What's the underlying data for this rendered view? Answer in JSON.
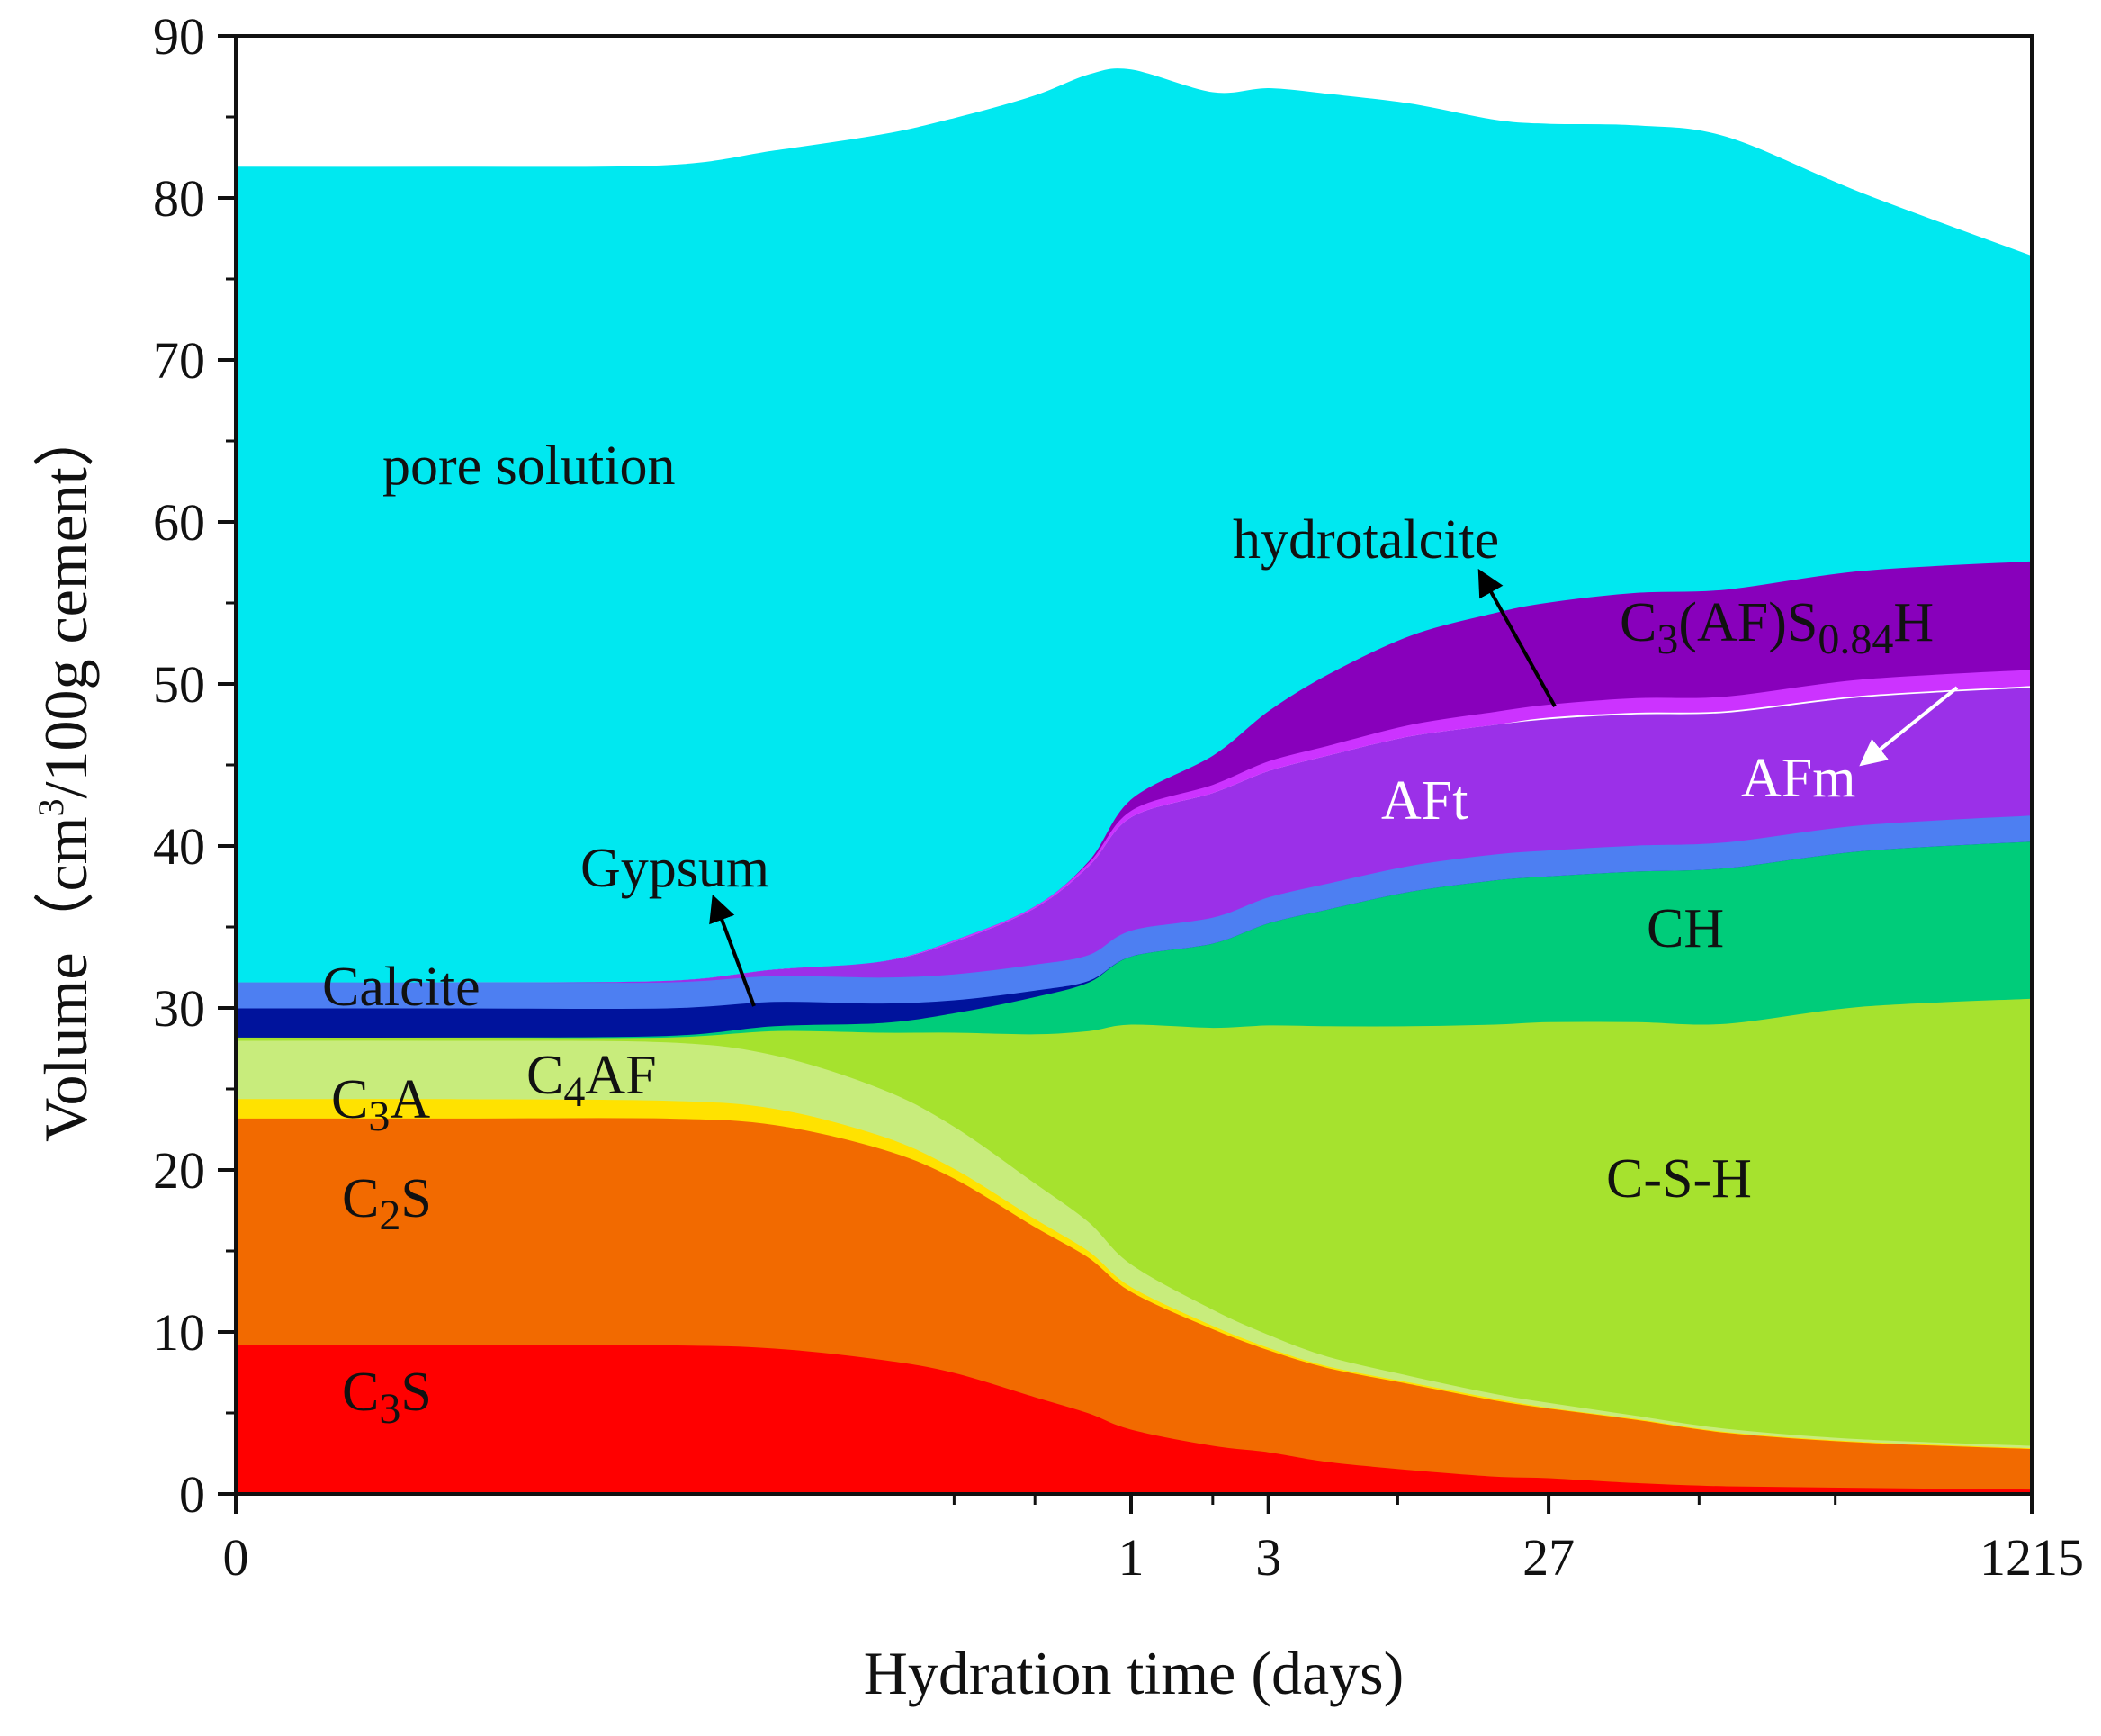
{
  "chart_data": {
    "type": "area",
    "stacked": true,
    "xlabel": "Hydration time (days)",
    "ylabel": {
      "prefix": "Volume（cm",
      "sup": "3",
      "suffix": "/100g cement）"
    },
    "ylim": [
      0,
      90
    ],
    "yticks": [
      0,
      10,
      20,
      30,
      40,
      50,
      60,
      70,
      80,
      90
    ],
    "x_scale": "log",
    "xlim_days": [
      0,
      1215
    ],
    "xtick_labels": [
      {
        "value": 0,
        "label": "0"
      },
      {
        "value": 1,
        "label": "1"
      },
      {
        "value": 3,
        "label": "3"
      },
      {
        "value": 27,
        "label": "27"
      },
      {
        "value": 1215,
        "label": "1215"
      }
    ],
    "x_days": [
      0,
      0.01,
      0.05,
      0.1,
      0.2,
      0.3,
      0.5,
      0.7,
      1,
      2,
      3,
      5,
      10,
      20,
      27,
      50,
      100,
      300,
      1215
    ],
    "series": [
      {
        "name": "C3S",
        "color": "#ff0000",
        "values": [
          9.2,
          9.2,
          9.2,
          9.0,
          8.3,
          7.5,
          6.0,
          5.0,
          4.0,
          3.0,
          2.6,
          2.0,
          1.5,
          1.1,
          1.0,
          0.7,
          0.5,
          0.4,
          0.3
        ]
      },
      {
        "name": "C2S",
        "color": "#f26a00",
        "values": [
          14.0,
          14.0,
          14.0,
          13.8,
          13.0,
          12.0,
          10.5,
          9.6,
          8.5,
          7.2,
          6.3,
          5.8,
          5.3,
          4.7,
          4.3,
          3.9,
          3.3,
          2.8,
          2.5
        ]
      },
      {
        "name": "C3A",
        "color": "#ffe200",
        "values": [
          1.2,
          1.2,
          1.1,
          1.0,
          0.8,
          0.6,
          0.5,
          0.4,
          0.3,
          0.2,
          0.15,
          0.1,
          0.1,
          0.1,
          0.05,
          0.05,
          0.05,
          0.05,
          0.05
        ]
      },
      {
        "name": "C4AF",
        "color": "#c8ec7c",
        "values": [
          3.6,
          3.6,
          3.6,
          3.3,
          2.9,
          2.6,
          2.2,
          1.8,
          1.4,
          1.0,
          0.8,
          0.6,
          0.4,
          0.3,
          0.3,
          0.2,
          0.2,
          0.15,
          0.15
        ]
      },
      {
        "name": "C-S-H",
        "color": "#a6e22e",
        "values": [
          0.2,
          0.2,
          0.3,
          1.5,
          3.5,
          5.8,
          9.2,
          11.8,
          14.8,
          17.4,
          19.1,
          20.4,
          21.6,
          22.8,
          23.5,
          24.3,
          25.0,
          26.7,
          27.6
        ]
      },
      {
        "name": "CH",
        "color": "#00cc7a",
        "values": [
          0.0,
          0.0,
          0.1,
          0.3,
          0.6,
          1.2,
          2.3,
          3.0,
          4.2,
          5.2,
          6.3,
          7.2,
          8.3,
          8.9,
          9.0,
          9.3,
          9.6,
          9.6,
          9.7
        ]
      },
      {
        "name": "Gypsum",
        "color": "#00139c",
        "values": [
          1.8,
          1.8,
          1.7,
          1.5,
          1.2,
          0.8,
          0.4,
          0.1,
          0,
          0,
          0,
          0,
          0,
          0,
          0,
          0,
          0,
          0,
          0
        ]
      },
      {
        "name": "Calcite",
        "color": "#4d7ff2",
        "values": [
          1.6,
          1.6,
          1.6,
          1.6,
          1.6,
          1.6,
          1.6,
          1.6,
          1.6,
          1.6,
          1.6,
          1.6,
          1.6,
          1.6,
          1.6,
          1.6,
          1.6,
          1.6,
          1.6
        ]
      },
      {
        "name": "AFt",
        "color": "#9b30e8",
        "values": [
          0.0,
          0.0,
          0.1,
          0.4,
          1.0,
          2.0,
          3.5,
          5.5,
          7.0,
          7.7,
          7.8,
          7.9,
          8.0,
          8.0,
          8.1,
          8.1,
          8.0,
          7.9,
          7.9
        ]
      },
      {
        "name": "AFm",
        "color": "#ffffff",
        "values": [
          0,
          0,
          0,
          0,
          0,
          0,
          0,
          0,
          0,
          0,
          0,
          0,
          0,
          0,
          0.1,
          0.1,
          0.1,
          0.1,
          0.1
        ]
      },
      {
        "name": "hydrotalcite",
        "color": "#cc33ff",
        "values": [
          0,
          0,
          0,
          0,
          0,
          0.1,
          0.1,
          0.2,
          0.4,
          0.5,
          0.6,
          0.6,
          0.7,
          0.8,
          0.8,
          0.9,
          0.9,
          1.0,
          1.0
        ]
      },
      {
        "name": "C3(AF)S0.84H",
        "color": "#8800bb",
        "values": [
          0,
          0,
          0,
          0,
          0,
          0,
          0,
          0.1,
          0.7,
          1.8,
          3.1,
          4.4,
          5.5,
          6.1,
          6.3,
          6.5,
          6.6,
          6.7,
          6.7
        ]
      },
      {
        "name": "pore solution",
        "color": "#00e8f0",
        "values": [
          50.3,
          50.3,
          50.3,
          50.5,
          51.0,
          50.7,
          50.0,
          48.5,
          45.0,
          40.9,
          38.4,
          35.8,
          32.8,
          30.4,
          29.5,
          28.8,
          27.9,
          23.3,
          18.8
        ]
      }
    ],
    "annotations": [
      {
        "text": "pore solution"
      },
      {
        "text": "hydrotalcite",
        "arrow": true
      },
      {
        "text": "C3(AF)S0.84H",
        "base": "C",
        "sub1": "3",
        "mid": "(AF)S",
        "sub2": "0.84",
        "tail": "H"
      },
      {
        "text": "AFt"
      },
      {
        "text": "AFm",
        "arrow": true
      },
      {
        "text": "Gypsum",
        "arrow": true
      },
      {
        "text": "CH"
      },
      {
        "text": "Calcite"
      },
      {
        "text": "C4AF",
        "base": "C",
        "sub1": "4",
        "tail": "AF"
      },
      {
        "text": "C3A",
        "base": "C",
        "sub1": "3",
        "tail": "A"
      },
      {
        "text": "C-S-H"
      },
      {
        "text": "C2S",
        "base": "C",
        "sub1": "2",
        "tail": "S"
      },
      {
        "text": "C3S",
        "base": "C",
        "sub1": "3",
        "tail": "S"
      }
    ]
  }
}
